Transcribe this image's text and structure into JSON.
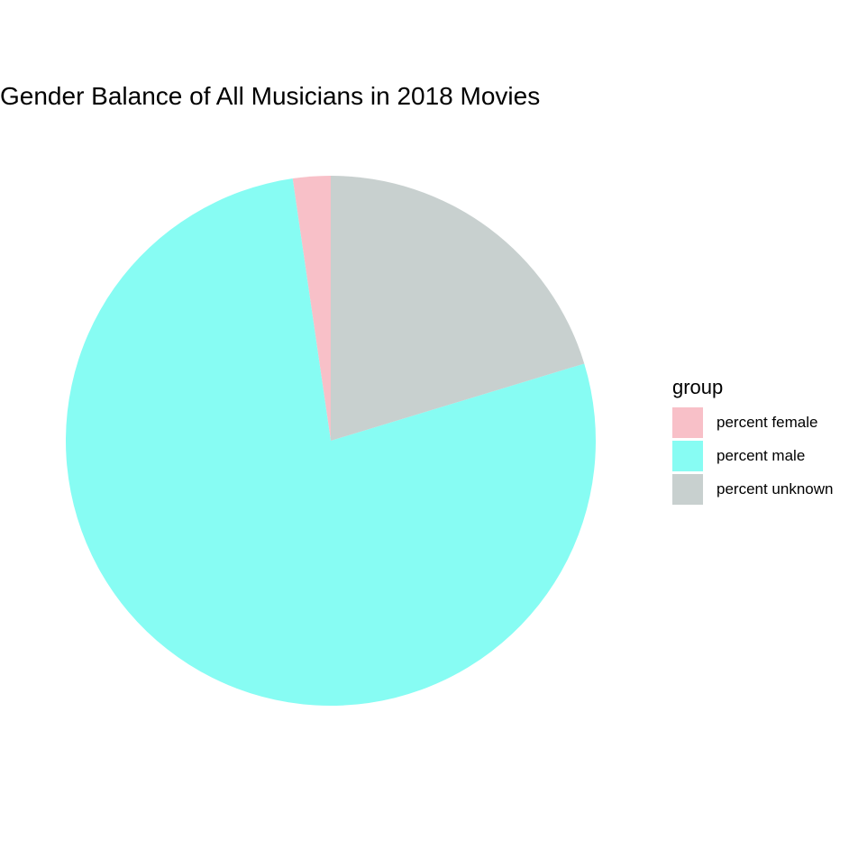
{
  "chart_data": {
    "type": "pie",
    "title": "Gender Balance of All Musicians in 2018 Movies",
    "legend_title": "group",
    "legend_position": "right",
    "slices": [
      {
        "label": "percent female",
        "value": 2.3,
        "color": "#F8C0C8"
      },
      {
        "label": "percent male",
        "value": 77.4,
        "color": "#87FCF3"
      },
      {
        "label": "percent unknown",
        "value": 20.3,
        "color": "#C8D0CF"
      }
    ],
    "start_angle_deg": 0,
    "direction": "counterclockwise"
  }
}
